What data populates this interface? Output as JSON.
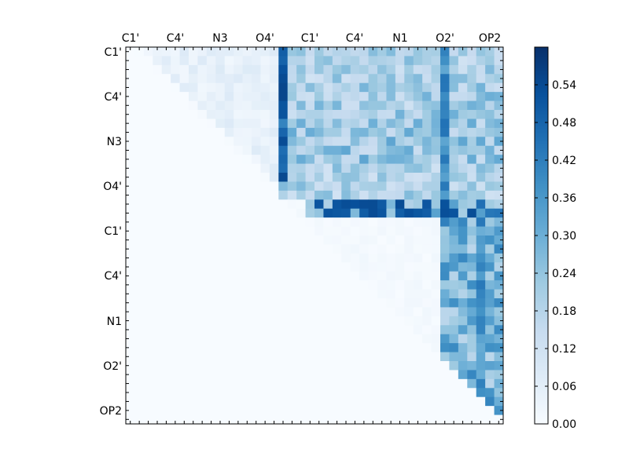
{
  "chart_data": {
    "type": "heatmap",
    "title": "",
    "xlabel": "",
    "ylabel": "",
    "x_tick_labels": [
      "C1'",
      "C4'",
      "N3",
      "O4'",
      "C1'",
      "C4'",
      "N1",
      "O2'",
      "OP2"
    ],
    "y_tick_labels": [
      "C1'",
      "C4'",
      "N3",
      "O4'",
      "C1'",
      "C4'",
      "N1",
      "O2'",
      "OP2"
    ],
    "x_axis_position": "top",
    "grid": false,
    "colormap": "Blues",
    "colormap_stops": [
      "#f7fbff",
      "#deebf7",
      "#c6dbef",
      "#9ecae1",
      "#6baed6",
      "#4292c6",
      "#2171b5",
      "#08519c",
      "#08306b"
    ],
    "colorbar": {
      "position": "right",
      "range": [
        0.0,
        0.6
      ],
      "ticks": [
        "0.00",
        "0.06",
        "0.12",
        "0.18",
        "0.24",
        "0.30",
        "0.36",
        "0.42",
        "0.48",
        "0.54"
      ]
    },
    "matrix_size": 42,
    "value_range": [
      0.0,
      0.6
    ],
    "description_of_values": "upper-triangular matrix; lower triangle zero",
    "row_band_values": [
      {
        "rows": [
          0,
          3
        ],
        "cols": [
          17,
          41
        ],
        "approx_value": 0.2
      },
      {
        "rows": [
          4,
          7
        ],
        "cols": [
          17,
          41
        ],
        "approx_value": 0.22
      },
      {
        "rows": [
          8,
          12
        ],
        "cols": [
          17,
          41
        ],
        "approx_value": 0.24
      },
      {
        "rows": [
          13,
          16
        ],
        "cols": [
          17,
          41
        ],
        "approx_value": 0.2
      },
      {
        "rows": [
          17,
          18
        ],
        "cols": [
          20,
          41
        ],
        "approx_value": 0.34
      },
      {
        "rows": [
          17,
          18
        ],
        "cols": [
          20,
          38
        ],
        "peak_value": 0.54
      },
      {
        "rows": [
          19,
          41
        ],
        "cols": [
          35,
          41
        ],
        "approx_value": 0.3
      }
    ],
    "column_peaks": [
      {
        "col": 17,
        "rows": [
          0,
          14
        ],
        "approx_value": 0.5
      },
      {
        "col": 35,
        "rows": [
          0,
          19
        ],
        "approx_value": 0.42
      },
      {
        "col": 39,
        "rows": [
          19,
          38
        ],
        "approx_value": 0.4
      }
    ]
  }
}
